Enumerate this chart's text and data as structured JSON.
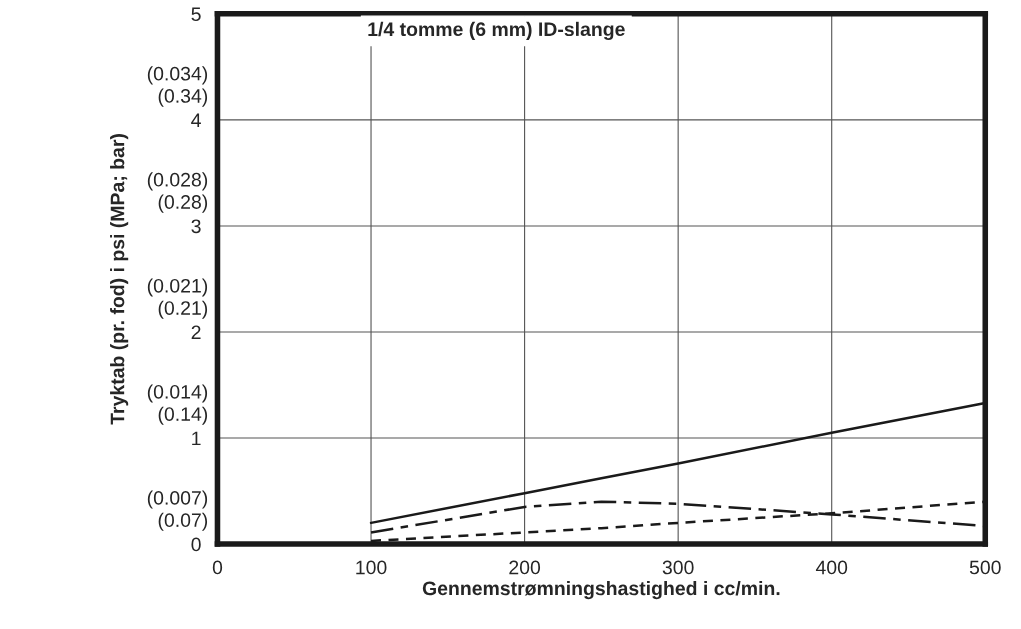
{
  "chart_data": {
    "type": "line",
    "title": "1/4 tomme (6 mm) ID-slange",
    "xlabel": "Gennemstrømningshastighed i cc/min.",
    "ylabel": "Tryktab (pr. fod) i psi (MPa; bar)",
    "x": [
      100,
      200,
      250,
      300,
      400,
      500
    ],
    "series": [
      {
        "color": "#1a1a1a",
        "line_style": "solid",
        "values": [
          0.2,
          0.48,
          0.62,
          0.76,
          1.05,
          1.33
        ]
      },
      {
        "color": "#1a1a1a",
        "line_style": "dashed",
        "values": [
          0.11,
          0.35,
          0.4,
          0.38,
          0.28,
          0.17
        ]
      },
      {
        "color": "#1a1a1a",
        "line_style": "dotted",
        "values": [
          0.03,
          0.11,
          0.15,
          0.2,
          0.29,
          0.4
        ]
      }
    ],
    "xlim": [
      0,
      500
    ],
    "xticks": [
      0,
      100,
      200,
      300,
      400,
      500
    ],
    "ylim": [
      0,
      5
    ],
    "yticks": [
      0,
      1,
      2,
      3,
      4,
      5
    ],
    "annotations": [
      "(0.034)",
      "(0.34)",
      "(0.028)",
      "(0.28)",
      "(0.021)",
      "(0.21)",
      "(0.014)",
      "(0.14)",
      "(0.007)",
      "(0.07)"
    ],
    "grid": true,
    "marker": "none"
  }
}
